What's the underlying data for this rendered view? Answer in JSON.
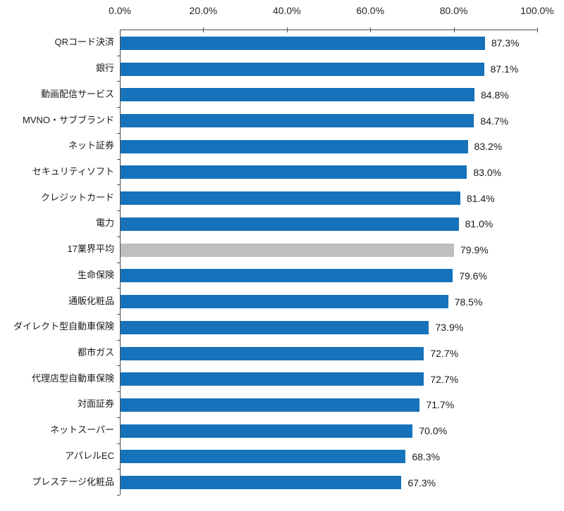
{
  "chart_data": {
    "type": "bar",
    "orientation": "horizontal",
    "title": "",
    "xlabel": "",
    "ylabel": "",
    "xlim": [
      0,
      100
    ],
    "grid": false,
    "legend": "none",
    "axis_tick_labels": [
      "0.0%",
      "20.0%",
      "40.0%",
      "60.0%",
      "80.0%",
      "100.0%"
    ],
    "axis_tick_values": [
      0,
      20,
      40,
      60,
      80,
      100
    ],
    "categories": [
      "QRコード決済",
      "銀行",
      "動画配信サービス",
      "MVNO・サブブランド",
      "ネット証券",
      "セキュリティソフト",
      "クレジットカード",
      "電力",
      "17業界平均",
      "生命保険",
      "通販化粧品",
      "ダイレクト型自動車保険",
      "都市ガス",
      "代理店型自動車保険",
      "対面証券",
      "ネットスーパー",
      "アパレルEC",
      "プレステージ化粧品"
    ],
    "values": [
      87.3,
      87.1,
      84.8,
      84.7,
      83.2,
      83.0,
      81.4,
      81.0,
      79.9,
      79.6,
      78.5,
      73.9,
      72.7,
      72.7,
      71.7,
      70.0,
      68.3,
      67.3
    ],
    "value_labels": [
      "87.3%",
      "87.1%",
      "84.8%",
      "84.7%",
      "83.2%",
      "83.0%",
      "81.4%",
      "81.0%",
      "79.9%",
      "79.6%",
      "78.5%",
      "73.9%",
      "72.7%",
      "72.7%",
      "71.7%",
      "70.0%",
      "68.3%",
      "67.3%"
    ],
    "bar_color": "#1672BA",
    "highlight_index": 8,
    "highlight_color": "#BFBFBF",
    "axis_line_color": "#4d4d4d"
  }
}
